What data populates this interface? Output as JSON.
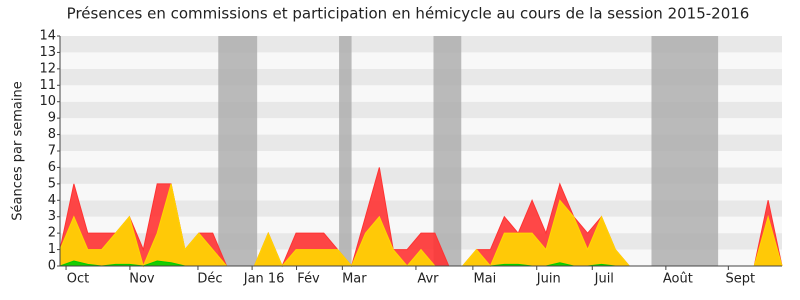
{
  "chart_data": {
    "type": "area",
    "title": "Présences en commissions et participation en hémicycle au cours de la session 2015-2016",
    "y_label": "Séances par semaine",
    "x": [
      0,
      1,
      2,
      3,
      4,
      5,
      6,
      7,
      8,
      9,
      10,
      11,
      12,
      13,
      14,
      15,
      16,
      17,
      18,
      19,
      20,
      21,
      22,
      23,
      24,
      25,
      26,
      27,
      28,
      29,
      30,
      31,
      32,
      33,
      34,
      35,
      36,
      37,
      38,
      39,
      40,
      41,
      42,
      43,
      44,
      45,
      46,
      47,
      48,
      49,
      50,
      51,
      52
    ],
    "series": [
      {
        "color": "#ff3333",
        "values": [
          1,
          5,
          2,
          2,
          2,
          3,
          1,
          5,
          5,
          1,
          2,
          2,
          0,
          0,
          0,
          2,
          0,
          2,
          2,
          2,
          1,
          0,
          3,
          6,
          1,
          1,
          2,
          2,
          0,
          0,
          1,
          1,
          3,
          2,
          4,
          2,
          5,
          3,
          2,
          3,
          1,
          0,
          0,
          0,
          0,
          0,
          0,
          0,
          0,
          0,
          0,
          4,
          0
        ]
      },
      {
        "color": "#ffd700",
        "values": [
          1,
          3,
          1,
          1,
          2,
          3,
          0,
          2,
          5,
          1,
          2,
          1,
          0,
          0,
          0,
          2,
          0,
          1,
          1,
          1,
          1,
          0,
          2,
          3,
          1,
          0,
          1,
          0,
          0,
          0,
          1,
          0,
          2,
          2,
          2,
          1,
          4,
          3,
          1,
          3,
          1,
          0,
          0,
          0,
          0,
          0,
          0,
          0,
          0,
          0,
          0,
          3,
          0
        ]
      },
      {
        "color": "#00cc00",
        "values": [
          0,
          0.3,
          0.1,
          0,
          0.1,
          0.1,
          0,
          0.3,
          0.2,
          0,
          0,
          0,
          0,
          0,
          0,
          0,
          0,
          0,
          0,
          0,
          0,
          0,
          0,
          0,
          0,
          0,
          0,
          0,
          0,
          0,
          0,
          0,
          0.1,
          0.1,
          0,
          0,
          0.2,
          0,
          0,
          0.1,
          0,
          0,
          0,
          0,
          0,
          0,
          0,
          0,
          0,
          0,
          0,
          0,
          0
        ]
      }
    ],
    "shaded_ranges": [
      [
        11.4,
        14.2
      ],
      [
        20.1,
        21.0
      ],
      [
        26.9,
        28.9
      ],
      [
        42.6,
        47.4
      ]
    ],
    "xlim": [
      0,
      52
    ],
    "xticks": [
      {
        "value": 1.3,
        "label": "Oct"
      },
      {
        "value": 5.9,
        "label": "Nov"
      },
      {
        "value": 10.8,
        "label": "Déc"
      },
      {
        "value": 14.7,
        "label": "Jan 16"
      },
      {
        "value": 17.9,
        "label": "Fév"
      },
      {
        "value": 21.2,
        "label": "Mar"
      },
      {
        "value": 26.5,
        "label": "Avr"
      },
      {
        "value": 30.6,
        "label": "Mai"
      },
      {
        "value": 35.2,
        "label": "Juin"
      },
      {
        "value": 39.2,
        "label": "Juil"
      },
      {
        "value": 44.5,
        "label": "Août"
      },
      {
        "value": 49.0,
        "label": "Sept"
      }
    ],
    "ylim": [
      0,
      14
    ],
    "yticks": [
      0,
      1,
      2,
      3,
      4,
      5,
      6,
      7,
      8,
      9,
      10,
      11,
      12,
      13,
      14
    ]
  }
}
